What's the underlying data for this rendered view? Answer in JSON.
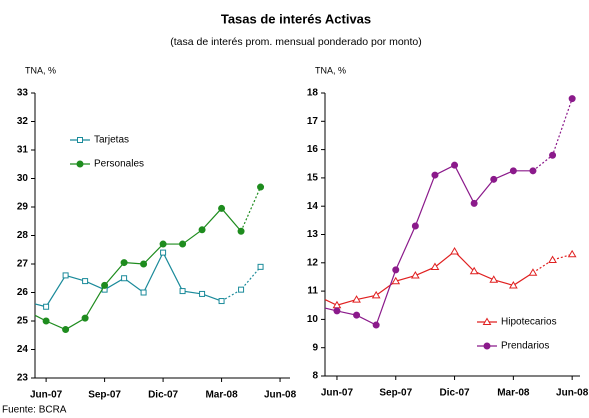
{
  "header": {
    "title": "Tasas de interés Activas",
    "subtitle": "(tasa de interés prom. mensual ponderado por monto)",
    "source": "Fuente: BCRA"
  },
  "chart_data": [
    {
      "type": "line",
      "y_label": "TNA, %",
      "xlim": [
        -0.57,
        12.51
      ],
      "ylim": [
        23,
        33
      ],
      "yticks": [
        23,
        24,
        25,
        26,
        27,
        28,
        29,
        30,
        31,
        32,
        33
      ],
      "xticks": [
        {
          "value": 0,
          "label": "Jun-07"
        },
        {
          "value": 3,
          "label": "Sep-07"
        },
        {
          "value": 6,
          "label": "Dic-07"
        },
        {
          "value": 9,
          "label": "Mar-08"
        },
        {
          "value": 12,
          "label": "Jun-08"
        }
      ],
      "legend": "upper left",
      "series": [
        {
          "name": "Tarjetas",
          "color": "#1a8a9a",
          "marker": "square-open",
          "dotted_from": 9,
          "x": [
            -0.57,
            0,
            1,
            2,
            3,
            4,
            5,
            6,
            7,
            8,
            9,
            10,
            11
          ],
          "values": [
            25.6,
            25.5,
            26.6,
            26.4,
            26.1,
            26.5,
            26.0,
            27.4,
            26.05,
            25.95,
            25.7,
            26.1,
            26.9
          ]
        },
        {
          "name": "Personales",
          "color": "#1e8c1e",
          "marker": "circle",
          "dotted_from": 10,
          "x": [
            -0.57,
            0,
            1,
            2,
            3,
            4,
            5,
            6,
            7,
            8,
            9,
            10,
            11
          ],
          "values": [
            25.2,
            25.0,
            24.7,
            25.1,
            26.25,
            27.05,
            27.0,
            27.7,
            27.7,
            28.2,
            28.95,
            28.15,
            29.7
          ]
        }
      ]
    },
    {
      "type": "line",
      "y_label": "TNA, %",
      "xlim": [
        -0.61,
        12.4
      ],
      "ylim": [
        8,
        18
      ],
      "yticks": [
        8,
        9,
        10,
        11,
        12,
        13,
        14,
        15,
        16,
        17,
        18
      ],
      "xticks": [
        {
          "value": 0,
          "label": "Jun-07"
        },
        {
          "value": 3,
          "label": "Sep-07"
        },
        {
          "value": 6,
          "label": "Dic-07"
        },
        {
          "value": 9,
          "label": "Mar-08"
        },
        {
          "value": 12,
          "label": "Jun-08"
        }
      ],
      "legend": "lower right",
      "series": [
        {
          "name": "Hipotecarios",
          "color": "#e02020",
          "marker": "triangle-open",
          "dotted_from": 10,
          "x": [
            -0.61,
            0,
            1,
            2,
            3,
            4,
            5,
            6,
            7,
            8,
            9,
            10,
            11,
            12
          ],
          "values": [
            10.7,
            10.5,
            10.7,
            10.85,
            11.35,
            11.55,
            11.85,
            12.4,
            11.7,
            11.4,
            11.2,
            11.65,
            12.1,
            12.3
          ]
        },
        {
          "name": "Prendarios",
          "color": "#8b1a8b",
          "marker": "circle",
          "dotted_from": 10,
          "x": [
            -0.61,
            0,
            1,
            2,
            3,
            4,
            5,
            6,
            7,
            8,
            9,
            10,
            11,
            12
          ],
          "values": [
            10.4,
            10.3,
            10.15,
            9.8,
            11.75,
            13.3,
            15.1,
            15.45,
            14.1,
            14.95,
            15.25,
            15.25,
            15.8,
            17.8
          ]
        }
      ]
    }
  ]
}
